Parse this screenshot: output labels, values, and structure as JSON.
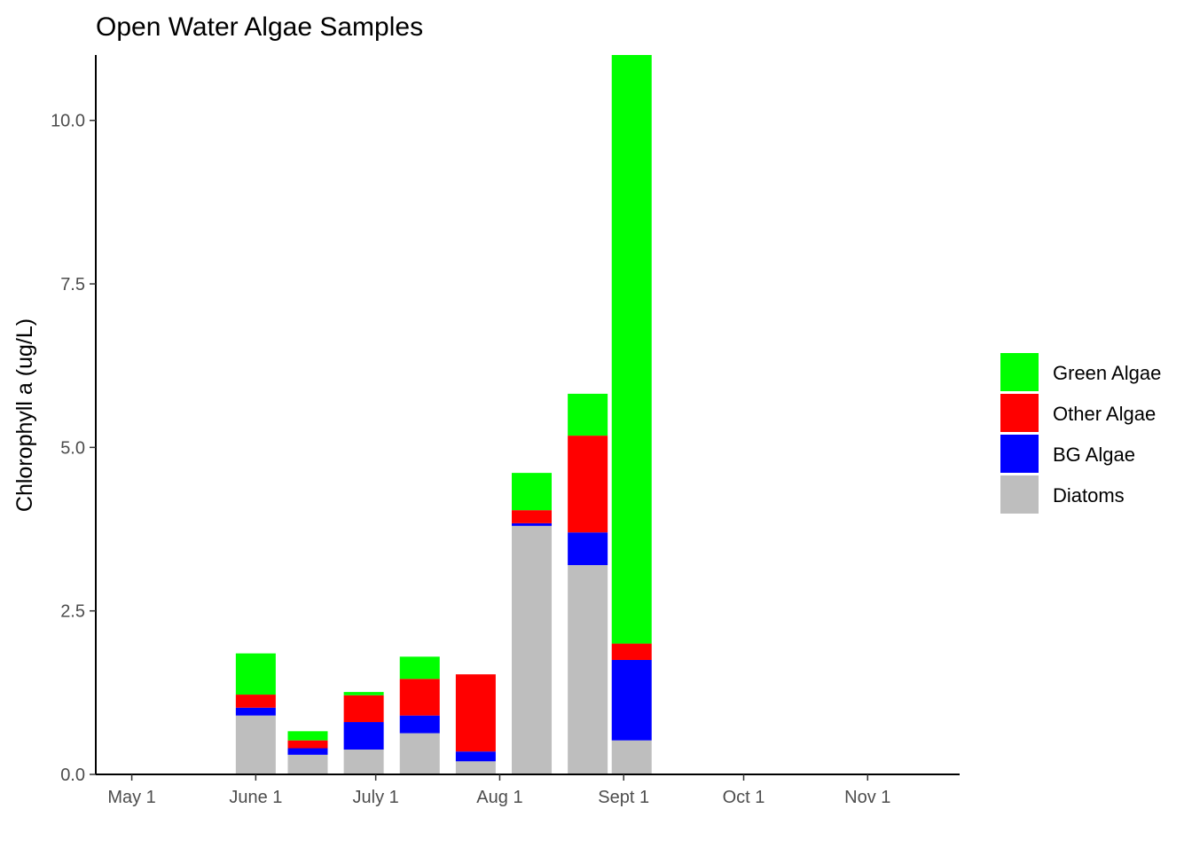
{
  "chart_data": {
    "type": "bar",
    "stacked": true,
    "title": "Open Water Algae Samples",
    "xlabel": "",
    "ylabel": "Chlorophyll a (ug/L)",
    "ylim": [
      0,
      11.0
    ],
    "yticks": [
      "0.0",
      "2.5",
      "5.0",
      "7.5",
      "10.0"
    ],
    "ytick_values": [
      0,
      2.5,
      5.0,
      7.5,
      10.0
    ],
    "xlim": [
      "2018-04-22",
      "2018-11-24"
    ],
    "xticks": [
      {
        "label": "May 1",
        "date": "2018-05-01"
      },
      {
        "label": "June 1",
        "date": "2018-06-01"
      },
      {
        "label": "July 1",
        "date": "2018-07-01"
      },
      {
        "label": "Aug 1",
        "date": "2018-08-01"
      },
      {
        "label": "Sept 1",
        "date": "2018-09-01"
      },
      {
        "label": "Oct 1",
        "date": "2018-10-01"
      },
      {
        "label": "Nov 1",
        "date": "2018-11-01"
      }
    ],
    "grid": false,
    "legend_position": "right",
    "dates": [
      "2018-06-01",
      "2018-06-14",
      "2018-06-28",
      "2018-07-12",
      "2018-07-26",
      "2018-08-09",
      "2018-08-23",
      "2018-09-03"
    ],
    "series": [
      {
        "name": "Diatoms",
        "color": "#bebebe",
        "values": [
          0.9,
          0.3,
          0.38,
          0.63,
          0.2,
          3.8,
          3.2,
          0.52
        ]
      },
      {
        "name": "BG Algae",
        "color": "#0000ff",
        "values": [
          0.12,
          0.1,
          0.42,
          0.27,
          0.15,
          0.04,
          0.5,
          1.23
        ]
      },
      {
        "name": "Other Algae",
        "color": "#ff0000",
        "values": [
          0.2,
          0.12,
          0.41,
          0.56,
          1.18,
          0.2,
          1.48,
          0.25
        ]
      },
      {
        "name": "Green Algae",
        "color": "#00ff00",
        "values": [
          0.63,
          0.14,
          0.05,
          0.34,
          0.0,
          0.57,
          0.64,
          9.1
        ]
      }
    ],
    "legend_order": [
      "Green Algae",
      "Other Algae",
      "BG Algae",
      "Diatoms"
    ]
  }
}
